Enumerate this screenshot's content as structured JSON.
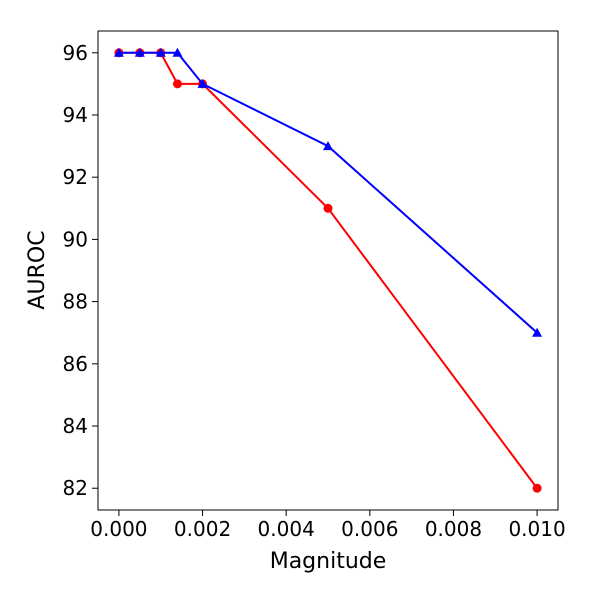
{
  "chart_data": {
    "type": "line",
    "title": "",
    "xlabel": "Magnitude",
    "ylabel": "AUROC",
    "xlim": [
      -0.0005,
      0.0105
    ],
    "ylim": [
      81.3,
      96.7
    ],
    "xticks": [
      0.0,
      0.002,
      0.004,
      0.006,
      0.008,
      0.01
    ],
    "xtick_labels": [
      "0.000",
      "0.002",
      "0.004",
      "0.006",
      "0.008",
      "0.010"
    ],
    "yticks": [
      82,
      84,
      86,
      88,
      90,
      92,
      94,
      96
    ],
    "ytick_labels": [
      "82",
      "84",
      "86",
      "88",
      "90",
      "92",
      "94",
      "96"
    ],
    "grid": false,
    "legend": "none",
    "series": [
      {
        "color": "#ff0000",
        "marker": "circle",
        "x": [
          0.0,
          0.0005,
          0.001,
          0.0014,
          0.002,
          0.005,
          0.01
        ],
        "y": [
          96,
          96,
          96,
          95,
          95,
          91,
          82
        ]
      },
      {
        "color": "#0000ff",
        "marker": "triangle",
        "x": [
          0.0,
          0.0005,
          0.001,
          0.0014,
          0.002,
          0.005,
          0.01
        ],
        "y": [
          96,
          96,
          96,
          96,
          95,
          93,
          87
        ]
      }
    ]
  }
}
